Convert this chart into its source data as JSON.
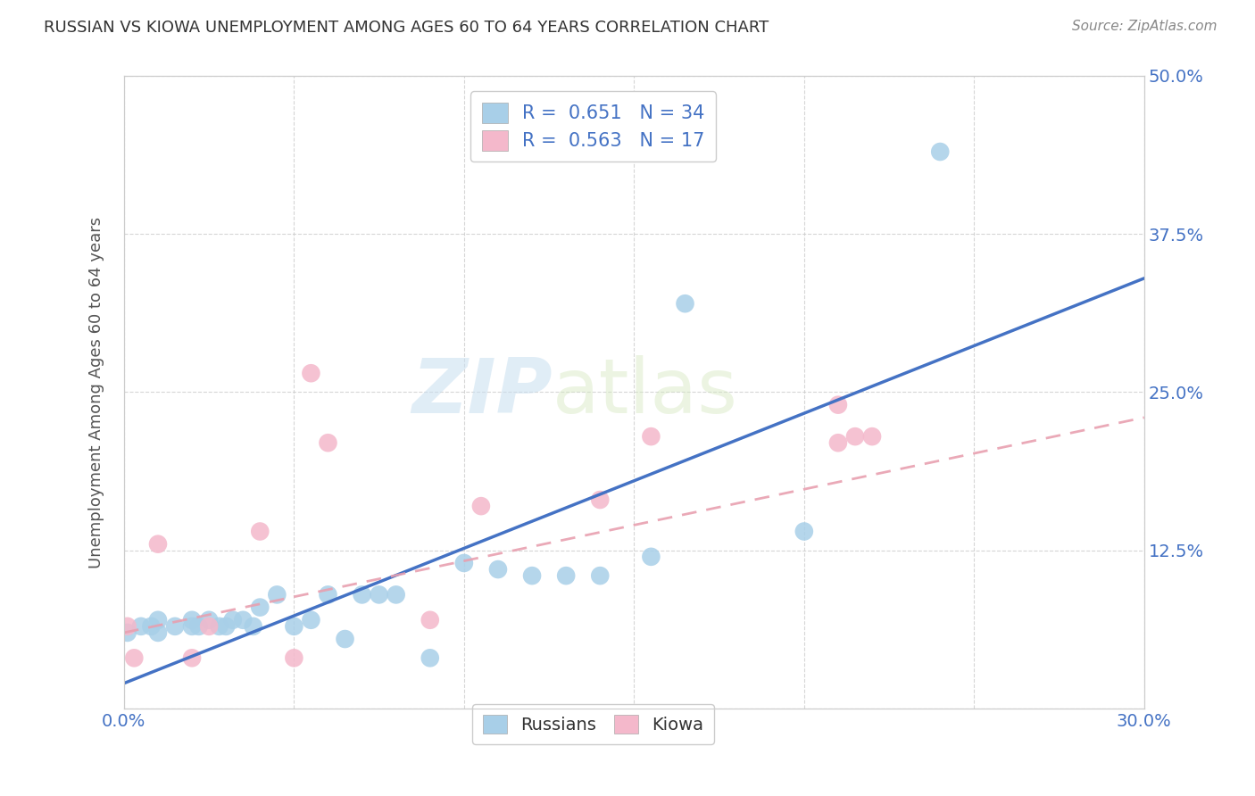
{
  "title": "RUSSIAN VS KIOWA UNEMPLOYMENT AMONG AGES 60 TO 64 YEARS CORRELATION CHART",
  "source": "Source: ZipAtlas.com",
  "xlabel": "",
  "ylabel": "Unemployment Among Ages 60 to 64 years",
  "xlim": [
    0.0,
    0.3
  ],
  "ylim": [
    0.0,
    0.5
  ],
  "xticks": [
    0.0,
    0.05,
    0.1,
    0.15,
    0.2,
    0.25,
    0.3
  ],
  "xtick_labels": [
    "0.0%",
    "",
    "",
    "",
    "",
    "",
    "30.0%"
  ],
  "ytick_labels": [
    "",
    "12.5%",
    "25.0%",
    "37.5%",
    "50.0%"
  ],
  "yticks": [
    0.0,
    0.125,
    0.25,
    0.375,
    0.5
  ],
  "russian_r": 0.651,
  "russian_n": 34,
  "kiowa_r": 0.563,
  "kiowa_n": 17,
  "russian_color": "#a8cfe8",
  "kiowa_color": "#f4b8cb",
  "russian_line_color": "#4472c4",
  "kiowa_line_color": "#e8a0b0",
  "watermark_zip": "ZIP",
  "watermark_atlas": "atlas",
  "russian_x": [
    0.001,
    0.005,
    0.008,
    0.01,
    0.01,
    0.015,
    0.02,
    0.02,
    0.022,
    0.025,
    0.028,
    0.03,
    0.032,
    0.035,
    0.038,
    0.04,
    0.045,
    0.05,
    0.055,
    0.06,
    0.065,
    0.07,
    0.075,
    0.08,
    0.09,
    0.1,
    0.11,
    0.12,
    0.13,
    0.14,
    0.155,
    0.165,
    0.2,
    0.24
  ],
  "russian_y": [
    0.06,
    0.065,
    0.065,
    0.06,
    0.07,
    0.065,
    0.065,
    0.07,
    0.065,
    0.07,
    0.065,
    0.065,
    0.07,
    0.07,
    0.065,
    0.08,
    0.09,
    0.065,
    0.07,
    0.09,
    0.055,
    0.09,
    0.09,
    0.09,
    0.04,
    0.115,
    0.11,
    0.105,
    0.105,
    0.105,
    0.12,
    0.32,
    0.14,
    0.44
  ],
  "kiowa_x": [
    0.001,
    0.003,
    0.01,
    0.02,
    0.025,
    0.04,
    0.05,
    0.055,
    0.06,
    0.09,
    0.105,
    0.14,
    0.155,
    0.21,
    0.21,
    0.215,
    0.22
  ],
  "kiowa_y": [
    0.065,
    0.04,
    0.13,
    0.04,
    0.065,
    0.14,
    0.04,
    0.265,
    0.21,
    0.07,
    0.16,
    0.165,
    0.215,
    0.21,
    0.24,
    0.215,
    0.215
  ],
  "russian_line_x": [
    0.0,
    0.3
  ],
  "russian_line_y": [
    0.02,
    0.34
  ],
  "kiowa_line_x": [
    0.0,
    0.3
  ],
  "kiowa_line_y": [
    0.06,
    0.23
  ]
}
